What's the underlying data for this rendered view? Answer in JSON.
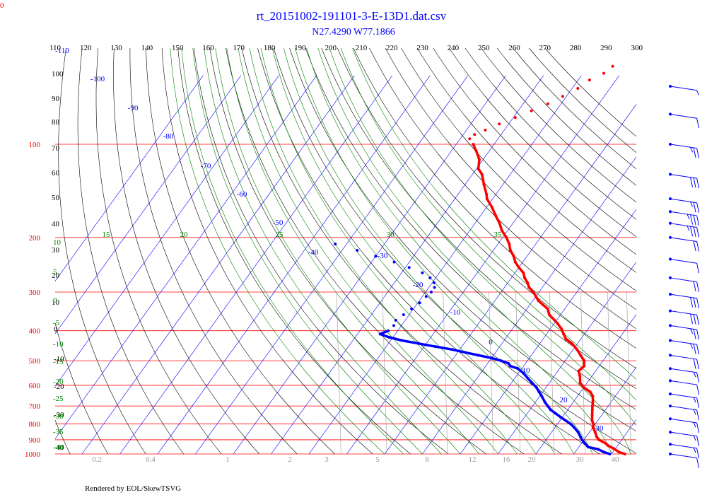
{
  "corner_label": "0",
  "title": "rt_20151002-191101-3-E-13D1.dat.csv",
  "subtitle": "N27.4290 W77.1866",
  "footer": "Rendered by EOL/SkewTSVG",
  "colors": {
    "title": "#0000ff",
    "isobar": "#ff0000",
    "isotherm": "#0000ff",
    "dry_adiabat": "#000000",
    "moist_adiabat": "#008000",
    "mixing_ratio": "#999999",
    "temperature": "#ff0000",
    "dewpoint": "#0000ff",
    "wind": "#0000ff"
  },
  "chart_data": {
    "type": "skew-t",
    "y_axis": {
      "label": "",
      "scale": "log",
      "range": [
        100,
        1000
      ]
    },
    "pressure_ticks": [
      100,
      200,
      300,
      400,
      500,
      600,
      700,
      800,
      900,
      1000
    ],
    "top_ticks": [
      "110",
      "120",
      "130",
      "140",
      "150",
      "160",
      "170",
      "180",
      "190",
      "200",
      "210",
      "220",
      "230",
      "240",
      "250",
      "260",
      "270",
      "280",
      "290",
      "300"
    ],
    "isotherm_labels": [
      "-110",
      "-100",
      "-90",
      "-80",
      "-70",
      "-60",
      "-50",
      "-40",
      "-30",
      "-20",
      "-10",
      "0",
      "10",
      "20",
      "30"
    ],
    "dry_adiabat_labels": [
      "100",
      "90",
      "80",
      "70",
      "60",
      "50",
      "40",
      "30",
      "20",
      "10",
      "0",
      "-10",
      "-20",
      "-30",
      "-40"
    ],
    "moist_adiabat_labels": [
      "15",
      "20",
      "25",
      "30",
      "35",
      "10",
      "5",
      "0",
      "-5",
      "-10",
      "-15",
      "-20",
      "-25",
      "-30",
      "-35",
      "-40"
    ],
    "mixing_ratio_labels": [
      "0.2",
      "0.4",
      "1",
      "2",
      "3",
      "5",
      "8",
      "12",
      "16",
      "20",
      "30",
      "40"
    ],
    "series": [
      {
        "name": "",
        "kind": "temperature",
        "points": [
          [
            1000,
            23.5
          ],
          [
            985,
            21.5
          ],
          [
            960,
            19.5
          ],
          [
            940,
            17.5
          ],
          [
            925,
            16.5
          ],
          [
            900,
            14.0
          ],
          [
            880,
            12.8
          ],
          [
            850,
            11.5
          ],
          [
            820,
            10.0
          ],
          [
            800,
            9.5
          ],
          [
            780,
            8.5
          ],
          [
            750,
            7.5
          ],
          [
            720,
            6.5
          ],
          [
            700,
            5.8
          ],
          [
            680,
            5.2
          ],
          [
            650,
            4.0
          ],
          [
            630,
            2.5
          ],
          [
            610,
            0.0
          ],
          [
            590,
            -1.8
          ],
          [
            560,
            -3.2
          ],
          [
            540,
            -4.5
          ],
          [
            520,
            -4.0
          ],
          [
            500,
            -5.0
          ],
          [
            480,
            -7.0
          ],
          [
            460,
            -9.0
          ],
          [
            440,
            -11.5
          ],
          [
            425,
            -14.0
          ],
          [
            410,
            -15.5
          ],
          [
            395,
            -17.0
          ],
          [
            380,
            -19.0
          ],
          [
            370,
            -20.5
          ],
          [
            355,
            -23.0
          ],
          [
            340,
            -24.5
          ],
          [
            330,
            -26.5
          ],
          [
            320,
            -28.5
          ],
          [
            310,
            -30.0
          ],
          [
            300,
            -31.5
          ],
          [
            290,
            -33.5
          ],
          [
            280,
            -34.8
          ],
          [
            270,
            -36.5
          ],
          [
            260,
            -37.8
          ],
          [
            250,
            -40.0
          ],
          [
            240,
            -42.0
          ],
          [
            230,
            -43.5
          ],
          [
            220,
            -45.5
          ],
          [
            210,
            -47.0
          ],
          [
            200,
            -49.0
          ],
          [
            190,
            -51.5
          ],
          [
            180,
            -53.5
          ],
          [
            170,
            -56.0
          ],
          [
            160,
            -58.5
          ],
          [
            150,
            -61.5
          ],
          [
            145,
            -62.5
          ],
          [
            135,
            -65.0
          ],
          [
            125,
            -67.5
          ],
          [
            120,
            -69.5
          ],
          [
            112,
            -71.0
          ],
          [
            105,
            -73.5
          ],
          [
            100,
            -75.5
          ],
          [
            96,
            -77.5
          ],
          [
            93,
            -77.0
          ],
          [
            90,
            -75.0
          ],
          [
            86,
            -72.5
          ],
          [
            82,
            -69.5
          ],
          [
            78,
            -66.5
          ],
          [
            74,
            -63.5
          ],
          [
            70,
            -61.0
          ],
          [
            66,
            -58.5
          ],
          [
            62,
            -57.0
          ],
          [
            59,
            -54.5
          ],
          [
            56,
            -53.5
          ]
        ]
      },
      {
        "name": "",
        "kind": "dewpoint",
        "points": [
          [
            1000,
            19.5
          ],
          [
            985,
            17.5
          ],
          [
            965,
            15.5
          ],
          [
            950,
            12.5
          ],
          [
            925,
            11.0
          ],
          [
            900,
            9.5
          ],
          [
            880,
            8.5
          ],
          [
            850,
            7.0
          ],
          [
            820,
            5.0
          ],
          [
            800,
            3.5
          ],
          [
            780,
            1.5
          ],
          [
            760,
            -0.5
          ],
          [
            740,
            -2.5
          ],
          [
            720,
            -4.5
          ],
          [
            700,
            -6.0
          ],
          [
            680,
            -7.5
          ],
          [
            650,
            -9.5
          ],
          [
            630,
            -11.0
          ],
          [
            610,
            -12.5
          ],
          [
            590,
            -14.5
          ],
          [
            570,
            -16.5
          ],
          [
            550,
            -18.5
          ],
          [
            530,
            -21.0
          ],
          [
            520,
            -23.5
          ],
          [
            510,
            -24.5
          ],
          [
            500,
            -27.0
          ],
          [
            490,
            -30.0
          ],
          [
            480,
            -34.0
          ],
          [
            470,
            -38.0
          ],
          [
            460,
            -42.0
          ],
          [
            450,
            -47.0
          ],
          [
            440,
            -52.0
          ],
          [
            430,
            -57.0
          ],
          [
            420,
            -61.0
          ],
          [
            410,
            -64.0
          ],
          [
            400,
            -62.5
          ],
          [
            385,
            -62.0
          ],
          [
            370,
            -62.5
          ],
          [
            355,
            -61.5
          ],
          [
            340,
            -60.5
          ],
          [
            325,
            -59.5
          ],
          [
            310,
            -59.0
          ],
          [
            300,
            -58.5
          ],
          [
            290,
            -58.5
          ],
          [
            280,
            -59.5
          ],
          [
            270,
            -61.5
          ],
          [
            260,
            -64.5
          ],
          [
            250,
            -69.0
          ],
          [
            240,
            -74.0
          ],
          [
            230,
            -80.0
          ],
          [
            220,
            -86.0
          ],
          [
            210,
            -93.0
          ]
        ]
      }
    ],
    "wind_barbs": [
      {
        "pressure": 65,
        "speed": 5
      },
      {
        "pressure": 80,
        "speed": 10
      },
      {
        "pressure": 100,
        "speed": 25
      },
      {
        "pressure": 125,
        "speed": 30
      },
      {
        "pressure": 150,
        "speed": 25
      },
      {
        "pressure": 165,
        "speed": 35
      },
      {
        "pressure": 180,
        "speed": 35
      },
      {
        "pressure": 200,
        "speed": 20
      },
      {
        "pressure": 235,
        "speed": 10
      },
      {
        "pressure": 270,
        "speed": 20
      },
      {
        "pressure": 305,
        "speed": 30
      },
      {
        "pressure": 345,
        "speed": 30
      },
      {
        "pressure": 385,
        "speed": 25
      },
      {
        "pressure": 430,
        "speed": 25
      },
      {
        "pressure": 480,
        "speed": 20
      },
      {
        "pressure": 530,
        "speed": 15
      },
      {
        "pressure": 580,
        "speed": 10
      },
      {
        "pressure": 640,
        "speed": 15
      },
      {
        "pressure": 700,
        "speed": 15
      },
      {
        "pressure": 770,
        "speed": 15
      },
      {
        "pressure": 850,
        "speed": 15
      },
      {
        "pressure": 930,
        "speed": 15
      },
      {
        "pressure": 1000,
        "speed": 10
      }
    ]
  }
}
